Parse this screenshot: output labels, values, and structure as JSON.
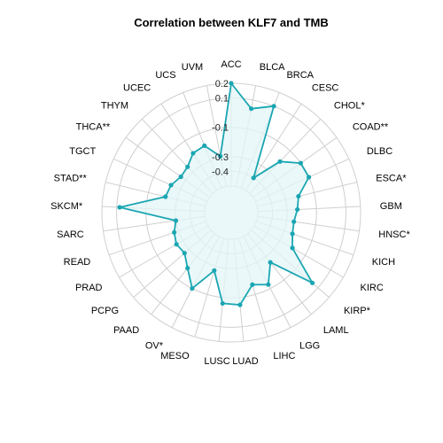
{
  "chart_data": {
    "type": "radar",
    "title": "Correlation between KLF7 and TMB",
    "rlim": [
      -0.5,
      0.2
    ],
    "rticks": [
      "0.2",
      "0.1",
      "-0.1",
      "-0.3",
      "-0.4"
    ],
    "rtick_values": [
      0.2,
      0.1,
      -0.1,
      -0.3,
      -0.4
    ],
    "grid": true,
    "categories": [
      "ACC",
      "BLCA",
      "BRCA",
      "CESC",
      "CHOL*",
      "COAD**",
      "DLBC",
      "ESCA*",
      "GBM",
      "HNSC*",
      "KICH",
      "KIRC",
      "KIRP*",
      "LAML",
      "LGG",
      "LIHC",
      "LUAD",
      "LUSC",
      "MESO",
      "OV*",
      "PAAD",
      "PCPG",
      "PRAD",
      "READ",
      "SARC",
      "SKCM*",
      "STAD**",
      "TGCT",
      "THCA**",
      "THYM",
      "UCEC",
      "UCS",
      "UVM"
    ],
    "series": [
      {
        "values": [
          0.2,
          0.04,
          0.1,
          -0.4,
          -0.2,
          -0.1,
          -0.1,
          -0.21,
          -0.23,
          -0.25,
          -0.24,
          -0.2,
          0.05,
          -0.25,
          -0.13,
          -0.17,
          -0.05,
          -0.06,
          -0.27,
          -0.1,
          -0.2,
          -0.26,
          -0.25,
          -0.27,
          -0.3,
          0.08,
          -0.22,
          -0.23,
          -0.26,
          -0.25,
          -0.2,
          -0.19,
          -0.29
        ],
        "color": "#1aa6b2"
      }
    ],
    "colors": {
      "line": "#1aa6b2",
      "fill": "#e3f5f7",
      "grid": "#cfcfcf"
    }
  }
}
